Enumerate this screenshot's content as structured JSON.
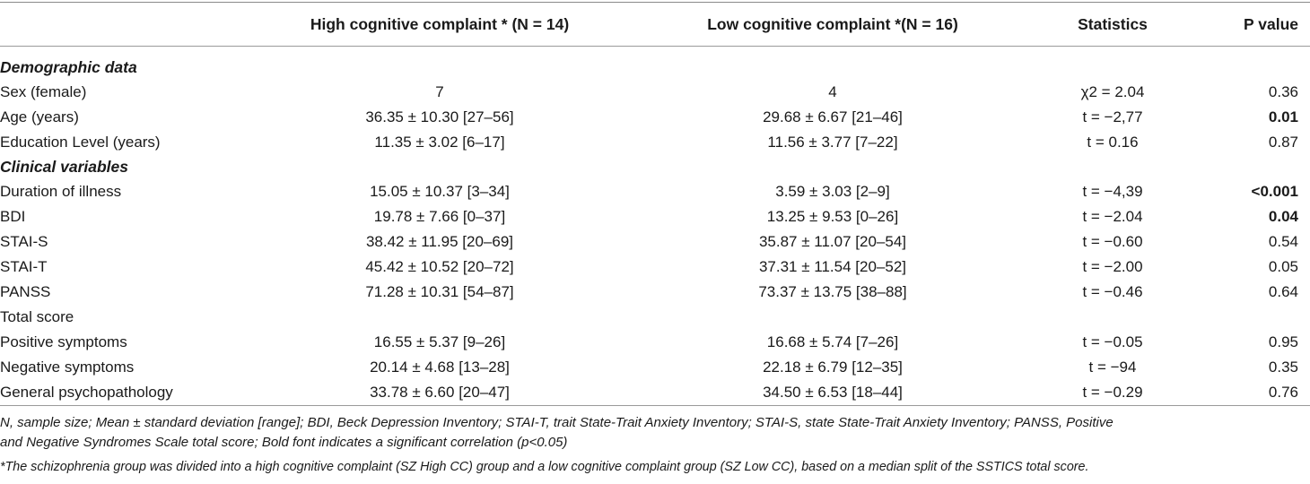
{
  "header": {
    "col_variable": "",
    "col_high": "High cognitive complaint * (N = 14)",
    "col_low": "Low cognitive complaint *(N = 16)",
    "col_stats": "Statistics",
    "col_p": "P value"
  },
  "sections": {
    "demographic": "Demographic data",
    "clinical": "Clinical variables"
  },
  "rows": [
    {
      "label": "Sex (female)",
      "high": "7",
      "low": "4",
      "stat": "χ2 = 2.04",
      "p": "0.36",
      "sig": false
    },
    {
      "label": "Age (years)",
      "high": "36.35 ± 10.30 [27–56]",
      "low": "29.68 ± 6.67 [21–46]",
      "stat": "t = −2,77",
      "p": "0.01",
      "sig": true
    },
    {
      "label": "Education Level (years)",
      "high": "11.35 ± 3.02 [6–17]",
      "low": "11.56 ± 3.77 [7–22]",
      "stat": "t = 0.16",
      "p": "0.87",
      "sig": false
    },
    {
      "label": "Duration of illness",
      "high": "15.05 ± 10.37 [3–34]",
      "low": "3.59 ± 3.03 [2–9]",
      "stat": "t = −4,39",
      "p": "<0.001",
      "sig": true
    },
    {
      "label": "BDI",
      "high": "19.78 ± 7.66 [0–37]",
      "low": "13.25 ± 9.53 [0–26]",
      "stat": "t = −2.04",
      "p": "0.04",
      "sig": true
    },
    {
      "label": "STAI-S",
      "high": "38.42 ± 11.95 [20–69]",
      "low": "35.87 ± 11.07 [20–54]",
      "stat": "t = −0.60",
      "p": "0.54",
      "sig": false
    },
    {
      "label": "STAI-T",
      "high": "45.42 ± 10.52 [20–72]",
      "low": "37.31 ± 11.54 [20–52]",
      "stat": "t = −2.00",
      "p": "0.05",
      "sig": false
    },
    {
      "label": "PANSS",
      "high": "71.28 ± 10.31 [54–87]",
      "low": "73.37 ± 13.75 [38–88]",
      "stat": "t = −0.46",
      "p": "0.64",
      "sig": false
    },
    {
      "label": "Total score",
      "high": "",
      "low": "",
      "stat": "",
      "p": "",
      "sig": false
    },
    {
      "label": "Positive symptoms",
      "high": "16.55 ± 5.37 [9–26]",
      "low": "16.68 ± 5.74 [7–26]",
      "stat": "t = −0.05",
      "p": "0.95",
      "sig": false
    },
    {
      "label": "Negative symptoms",
      "high": "20.14 ± 4.68 [13–28]",
      "low": "22.18 ± 6.79 [12–35]",
      "stat": "t = −94",
      "p": "0.35",
      "sig": false
    },
    {
      "label": "General psychopathology",
      "high": "33.78 ± 6.60 [20–47]",
      "low": "34.50 ± 6.53 [18–44]",
      "stat": "t = −0.29",
      "p": "0.76",
      "sig": false
    }
  ],
  "footnotes": {
    "abbrev_line1": "N, sample size; Mean ± standard deviation [range]; BDI, Beck Depression Inventory; STAI-T, trait State-Trait Anxiety Inventory; STAI-S, state State-Trait Anxiety Inventory; PANSS, Positive",
    "abbrev_line2": "and Negative Syndromes Scale total score; Bold font indicates a significant correlation (p<0.05)",
    "star_note": "*The schizophrenia group was divided into a high cognitive complaint (SZ High CC) group and a low cognitive complaint group (SZ Low CC), based on a median split of the SSTICS total score."
  }
}
